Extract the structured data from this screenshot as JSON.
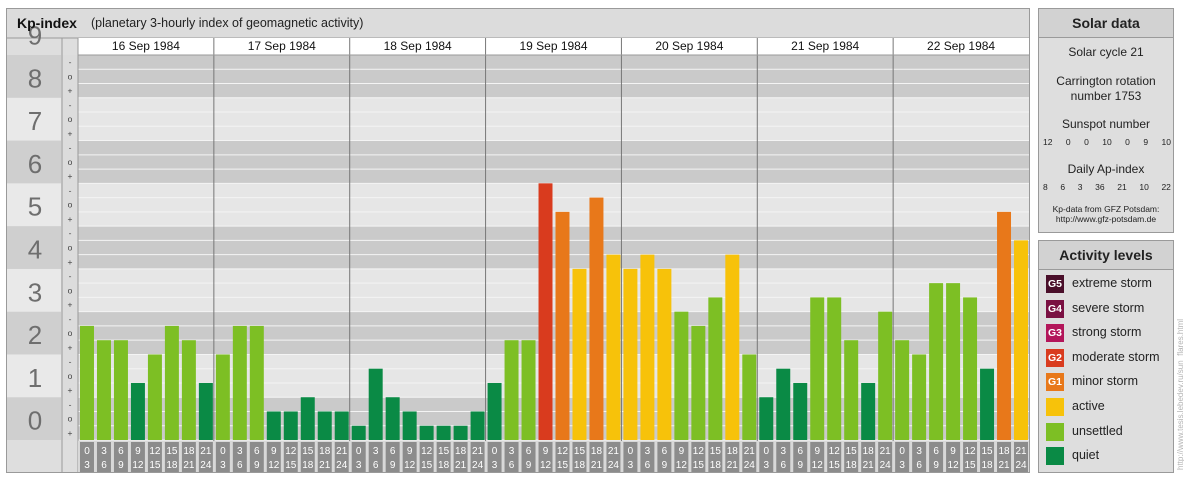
{
  "header": {
    "title": "Kp-index",
    "subtitle": "(planetary 3-hourly index of geomagnetic activity)"
  },
  "chart_data": {
    "type": "bar",
    "title": "Kp-index",
    "subtitle": "(planetary 3-hourly index of geomagnetic activity)",
    "y_range": [
      0,
      9
    ],
    "y_ticks": [
      "0",
      "1",
      "2",
      "3",
      "4",
      "5",
      "6",
      "7",
      "8",
      "9"
    ],
    "minor_marks": [
      "+",
      "o",
      "-"
    ],
    "days": [
      "16 Sep 1984",
      "17 Sep 1984",
      "18 Sep 1984",
      "19 Sep 1984",
      "20 Sep 1984",
      "21 Sep 1984",
      "22 Sep 1984"
    ],
    "interval_starts": [
      "0",
      "3",
      "6",
      "9",
      "12",
      "15",
      "18",
      "21"
    ],
    "interval_ends": [
      "3",
      "6",
      "9",
      "12",
      "15",
      "18",
      "21",
      "24"
    ],
    "values": [
      [
        2.667,
        2.333,
        2.333,
        1.333,
        2.0,
        2.667,
        2.333,
        1.333
      ],
      [
        2.0,
        2.667,
        2.667,
        0.667,
        0.667,
        1.0,
        0.667,
        0.667
      ],
      [
        0.333,
        1.667,
        1.0,
        0.667,
        0.333,
        0.333,
        0.333,
        0.667
      ],
      [
        1.333,
        2.333,
        2.333,
        6.0,
        5.333,
        4.0,
        5.667,
        4.333
      ],
      [
        4.0,
        4.333,
        4.0,
        3.0,
        2.667,
        3.333,
        4.333,
        2.0
      ],
      [
        1.0,
        1.667,
        1.333,
        3.333,
        3.333,
        2.333,
        1.333,
        3.0
      ],
      [
        2.333,
        2.0,
        3.667,
        3.667,
        3.333,
        1.667,
        5.333,
        4.667
      ]
    ],
    "legend_placement": "right",
    "grid": true
  },
  "solar": {
    "title": "Solar data",
    "cycle": "Solar cycle 21",
    "carrington_line1": "Carrington rotation",
    "carrington_line2": "number 1753",
    "sunspot_label": "Sunspot number",
    "sunspot_values": [
      "12",
      "0",
      "0",
      "10",
      "0",
      "9",
      "10"
    ],
    "ap_label": "Daily Ap-index",
    "ap_values": [
      "8",
      "6",
      "3",
      "36",
      "21",
      "10",
      "22"
    ],
    "source_line1": "Kp-data from GFZ Potsdam:",
    "source_line2": "http://www.gfz-potsdam.de"
  },
  "levels": {
    "title": "Activity levels",
    "items": [
      {
        "badge": "G5",
        "label": "extreme storm",
        "color": "#4a0f2a"
      },
      {
        "badge": "G4",
        "label": "severe storm",
        "color": "#7a1042"
      },
      {
        "badge": "G3",
        "label": "strong storm",
        "color": "#b3165a"
      },
      {
        "badge": "G2",
        "label": "moderate storm",
        "color": "#d93b1e"
      },
      {
        "badge": "G1",
        "label": "minor storm",
        "color": "#e8781a"
      },
      {
        "badge": "",
        "label": "active",
        "color": "#f7c20a"
      },
      {
        "badge": "",
        "label": "unsettled",
        "color": "#7dbf24"
      },
      {
        "badge": "",
        "label": "quiet",
        "color": "#0a8a45"
      }
    ]
  },
  "credit": "http://www.tesis.lebedev.ru/sun_flares.html"
}
